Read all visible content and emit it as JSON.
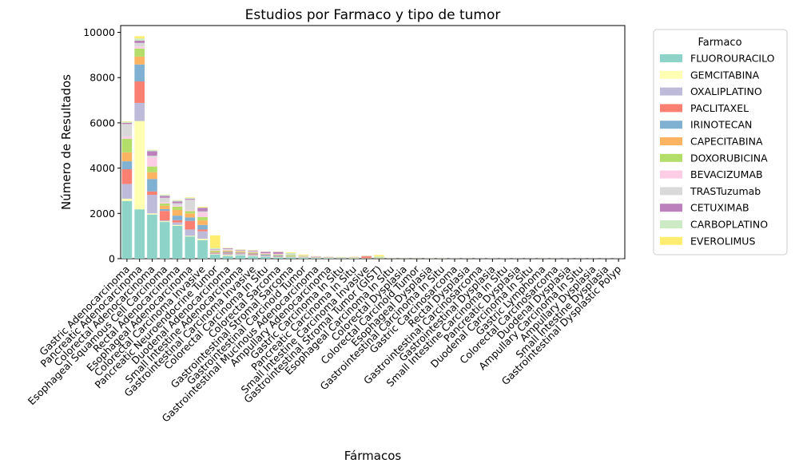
{
  "chart_data": {
    "type": "bar",
    "stacked": true,
    "title": "Estudios por Farmaco y tipo de tumor",
    "xlabel": "Fármacos",
    "ylabel": "Número de Resultados",
    "ylim": [
      0,
      10300
    ],
    "yticks": [
      0,
      2000,
      4000,
      6000,
      8000,
      10000
    ],
    "grid": false,
    "legend": {
      "title": "Farmaco",
      "placement": "outside-right-top"
    },
    "categories": [
      "Gastric Adenocarcinoma",
      "Pancreatic Adenocarcinoma",
      "Colorectal Adenocarcinoma",
      "Esophageal Squamous Cell Carcinoma",
      "Rectal Adenocarcinoma",
      "Esophageal Adenocarcinoma",
      "Colorectal Carcinoma Invasive",
      "Pancreatic Neuroendocrine Tumor",
      "Duodenal Adenocarcinoma",
      "Small Intestine Adenocarcinoma",
      "Gastrointestinal Carcinoma Invasive",
      "Colorectal Carcinoma In Situ",
      "Colorectal Sarcoma",
      "Gastrointestinal Stromal Sarcoma",
      "Gastrointestinal Carcinoid Tumor",
      "Gastrointestinal Mucinous Adenocarcinoma",
      "Ampullary Adenocarcinoma",
      "Gastric Carcinoma In Situ",
      "Pancreatic Carcinoma In Situ",
      "Small Intestine Carcinoma Invasive",
      "Gastrointestinal Stromal Tumor (GIST)",
      "Esophageal Carcinoma In Situ",
      "Colorectal Dysplasia",
      "Colorectal Carcinoid Tumor",
      "Esophageal Dysplasia",
      "Gastrointestinal Carcinoma In Situ",
      "Gastric Carcinosarcoma",
      "Rectal Dysplasia",
      "Gastrointestinal Carcinosarcoma",
      "Gastrointestinal Dysplasia",
      "Small Intestine Carcinoma In Situ",
      "Pancreatic Dysplasia",
      "Duodenal Carcinoma In Situ",
      "Gastric Lymphoma",
      "Colorectal Carcinosarcoma",
      "Duodenal Dysplasia",
      "Ampullary Carcinoma In Situ",
      "Ampullary Dysplasia",
      "Small Intestine Dysplasia",
      "Gastrointestinal Dysplastic Polyp"
    ],
    "series": [
      {
        "name": "FLUOROURACILO",
        "color": "#8dd3c7",
        "values": [
          2550,
          2180,
          1950,
          1620,
          1450,
          980,
          820,
          180,
          120,
          150,
          100,
          80,
          60,
          50,
          30,
          25,
          20,
          15,
          15,
          12,
          10,
          8,
          8,
          6,
          5,
          5,
          4,
          4,
          3,
          3,
          3,
          2,
          2,
          2,
          2,
          1,
          1,
          1,
          1,
          1
        ]
      },
      {
        "name": "GEMCITABINA",
        "color": "#ffffb3",
        "values": [
          100,
          3900,
          50,
          30,
          40,
          30,
          60,
          20,
          40,
          20,
          20,
          10,
          10,
          5,
          10,
          5,
          10,
          5,
          20,
          5,
          5,
          3,
          2,
          3,
          2,
          2,
          1,
          1,
          1,
          1,
          1,
          2,
          1,
          1,
          1,
          1,
          1,
          1,
          1,
          1
        ]
      },
      {
        "name": "OXALIPLATINO",
        "color": "#bebada",
        "values": [
          650,
          800,
          820,
          40,
          110,
          280,
          330,
          30,
          70,
          50,
          50,
          40,
          20,
          10,
          10,
          8,
          10,
          5,
          5,
          5,
          4,
          2,
          2,
          2,
          1,
          1,
          1,
          1,
          1,
          1,
          1,
          1,
          1,
          1,
          1,
          1,
          1,
          1,
          1,
          1
        ]
      },
      {
        "name": "PACLITAXEL",
        "color": "#fb8072",
        "values": [
          650,
          950,
          150,
          420,
          100,
          380,
          80,
          20,
          30,
          20,
          30,
          10,
          20,
          10,
          8,
          10,
          8,
          5,
          5,
          80,
          5,
          3,
          3,
          2,
          2,
          2,
          1,
          1,
          1,
          1,
          1,
          1,
          1,
          1,
          1,
          1,
          1,
          1,
          1,
          1
        ]
      },
      {
        "name": "IRINOTECAN",
        "color": "#80b1d3",
        "values": [
          350,
          750,
          550,
          80,
          200,
          150,
          200,
          20,
          40,
          30,
          30,
          40,
          30,
          10,
          10,
          10,
          5,
          5,
          5,
          5,
          3,
          2,
          2,
          2,
          1,
          1,
          1,
          1,
          1,
          1,
          1,
          1,
          1,
          1,
          1,
          1,
          1,
          1,
          1,
          1
        ]
      },
      {
        "name": "CAPECITABINA",
        "color": "#fdb462",
        "values": [
          400,
          350,
          300,
          150,
          250,
          180,
          200,
          30,
          40,
          40,
          30,
          20,
          15,
          10,
          10,
          8,
          8,
          5,
          5,
          5,
          3,
          2,
          2,
          2,
          1,
          1,
          1,
          1,
          1,
          1,
          1,
          1,
          1,
          1,
          1,
          1,
          1,
          1,
          1,
          1
        ]
      },
      {
        "name": "DOXORUBICINA",
        "color": "#b3de69",
        "values": [
          600,
          350,
          250,
          100,
          150,
          100,
          150,
          50,
          20,
          20,
          20,
          10,
          20,
          50,
          20,
          10,
          5,
          10,
          5,
          5,
          20,
          3,
          2,
          2,
          1,
          1,
          1,
          1,
          1,
          1,
          1,
          1,
          1,
          1,
          1,
          1,
          1,
          1,
          1,
          1
        ]
      },
      {
        "name": "BEVACIZUMAB",
        "color": "#fccde5",
        "values": [
          100,
          100,
          400,
          50,
          50,
          50,
          200,
          30,
          30,
          20,
          20,
          20,
          20,
          10,
          10,
          10,
          5,
          5,
          5,
          5,
          3,
          2,
          2,
          2,
          1,
          1,
          1,
          1,
          1,
          1,
          1,
          1,
          1,
          1,
          1,
          1,
          1,
          1,
          1,
          1
        ]
      },
      {
        "name": "TRASTuzumab",
        "color": "#d9d9d9",
        "values": [
          550,
          150,
          80,
          200,
          100,
          450,
          50,
          20,
          40,
          20,
          30,
          10,
          20,
          10,
          10,
          10,
          5,
          5,
          5,
          5,
          3,
          2,
          2,
          2,
          1,
          1,
          1,
          1,
          1,
          1,
          1,
          1,
          1,
          1,
          1,
          1,
          1,
          1,
          1,
          1
        ]
      },
      {
        "name": "CETUXIMAB",
        "color": "#bc80bd",
        "values": [
          50,
          100,
          200,
          80,
          80,
          40,
          150,
          20,
          30,
          20,
          30,
          60,
          80,
          10,
          10,
          10,
          5,
          5,
          5,
          5,
          3,
          2,
          2,
          2,
          1,
          1,
          1,
          1,
          1,
          1,
          1,
          1,
          1,
          1,
          1,
          1,
          1,
          1,
          1,
          1
        ]
      },
      {
        "name": "CARBOPLATINO",
        "color": "#ccebc5",
        "values": [
          50,
          100,
          50,
          50,
          50,
          50,
          20,
          50,
          10,
          10,
          10,
          5,
          10,
          80,
          10,
          5,
          5,
          5,
          5,
          5,
          40,
          3,
          2,
          2,
          1,
          1,
          1,
          1,
          1,
          1,
          1,
          1,
          1,
          1,
          1,
          1,
          1,
          1,
          1,
          1
        ]
      },
      {
        "name": "EVEROLIMUS",
        "color": "#ffed6f",
        "values": [
          20,
          100,
          10,
          10,
          10,
          20,
          30,
          560,
          10,
          10,
          10,
          5,
          10,
          30,
          40,
          5,
          5,
          5,
          10,
          5,
          60,
          2,
          2,
          2,
          1,
          1,
          1,
          1,
          1,
          1,
          1,
          1,
          1,
          1,
          1,
          1,
          1,
          1,
          1,
          1
        ]
      }
    ]
  }
}
